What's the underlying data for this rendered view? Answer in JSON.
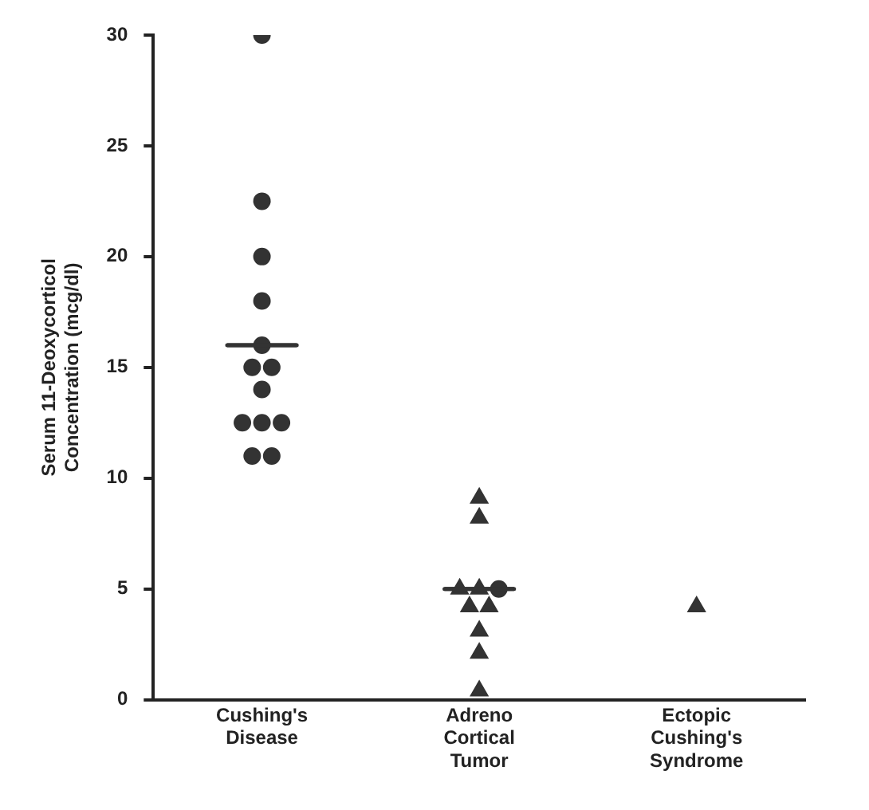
{
  "chart_data": {
    "type": "scatter",
    "ylabel": "Serum 11-Deoxycorticol\nConcentration (mcg/dl)",
    "categories": [
      "Cushing's\nDisease",
      "Adreno\nCortical\nTumor",
      "Ectopic\nCushing's\nSyndrome"
    ],
    "ylim": [
      0,
      30
    ],
    "yticks": [
      0,
      5,
      10,
      15,
      20,
      25,
      30
    ],
    "grid": false,
    "legend": false,
    "series": [
      {
        "type": "scatter",
        "marker": "circle",
        "color": "#333333",
        "x": [
          "Cushing's\nDisease",
          "Cushing's\nDisease",
          "Cushing's\nDisease",
          "Cushing's\nDisease",
          "Cushing's\nDisease",
          "Cushing's\nDisease",
          "Cushing's\nDisease",
          "Cushing's\nDisease",
          "Cushing's\nDisease",
          "Cushing's\nDisease",
          "Cushing's\nDisease",
          "Cushing's\nDisease",
          "Cushing's\nDisease"
        ],
        "values": [
          30,
          22.5,
          20,
          18,
          16,
          15,
          15,
          14,
          12.5,
          12.5,
          12.5,
          11,
          11
        ]
      },
      {
        "type": "scatter",
        "marker": "triangle",
        "color": "#333333",
        "x": [
          "Adreno\nCortical\nTumor",
          "Adreno\nCortical\nTumor",
          "Adreno\nCortical\nTumor",
          "Adreno\nCortical\nTumor",
          "Adreno\nCortical\nTumor",
          "Adreno\nCortical\nTumor",
          "Adreno\nCortical\nTumor",
          "Adreno\nCortical\nTumor",
          "Adreno\nCortical\nTumor"
        ],
        "values": [
          9.1,
          8.2,
          5,
          5,
          4.2,
          4.2,
          3.1,
          2.1,
          0.4
        ]
      },
      {
        "type": "scatter",
        "marker": "triangle",
        "color": "#333333",
        "x": [
          "Ectopic\nCushing's\nSyndrome"
        ],
        "values": [
          4.2
        ]
      },
      {
        "type": "scatter",
        "marker": "circle",
        "color": "#333333",
        "x": [
          "Adreno\nCortical\nTumor"
        ],
        "values": [
          5
        ]
      },
      {
        "type": "box",
        "color": "#333333",
        "boxes": [
          {
            "low": 16,
            "q1": 16,
            "median": 16,
            "q3": 16,
            "high": 16
          },
          {
            "low": 5,
            "q1": 5,
            "median": 5,
            "q3": 5,
            "high": 5
          },
          null
        ]
      }
    ]
  }
}
